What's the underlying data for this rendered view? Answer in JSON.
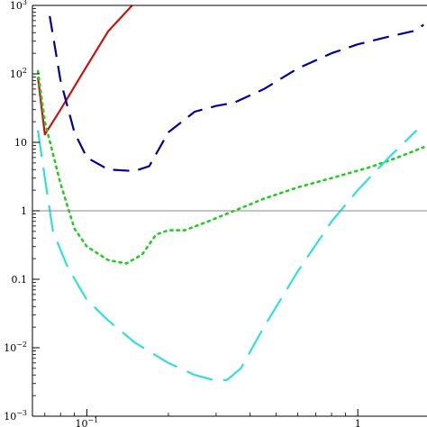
{
  "chart_data": {
    "type": "line",
    "x_scale": "log",
    "y_scale": "log",
    "xlim": [
      0.063,
      1.8
    ],
    "ylim": [
      0.001,
      1000
    ],
    "grid": false,
    "reference_line": {
      "y": 1,
      "color": "#888888"
    },
    "x_ticks": [
      {
        "value": 0.1,
        "base": "10",
        "exp": "−1"
      },
      {
        "value": 1,
        "base": "1",
        "exp": ""
      }
    ],
    "y_ticks": [
      {
        "value": 1000,
        "base": "10",
        "exp": "3"
      },
      {
        "value": 100,
        "base": "10",
        "exp": "2"
      },
      {
        "value": 10,
        "base": "10",
        "exp": ""
      },
      {
        "value": 1,
        "base": "1",
        "exp": ""
      },
      {
        "value": 0.1,
        "base": "0.1",
        "exp": ""
      },
      {
        "value": 0.01,
        "base": "10",
        "exp": "−2"
      },
      {
        "value": 0.001,
        "base": "10",
        "exp": "−3"
      }
    ],
    "series": [
      {
        "color": "#cc1111",
        "style": "solid",
        "points": [
          [
            0.066,
            90
          ],
          [
            0.07,
            13
          ],
          [
            0.08,
            30
          ],
          [
            0.1,
            130
          ],
          [
            0.12,
            420
          ],
          [
            0.147,
            1000
          ]
        ]
      },
      {
        "color": "#000099",
        "style": "dashed",
        "points": [
          [
            0.073,
            700
          ],
          [
            0.08,
            80
          ],
          [
            0.09,
            14
          ],
          [
            0.1,
            6
          ],
          [
            0.12,
            4
          ],
          [
            0.15,
            3.8
          ],
          [
            0.17,
            4.5
          ],
          [
            0.2,
            14
          ],
          [
            0.25,
            28
          ],
          [
            0.3,
            34
          ],
          [
            0.35,
            38
          ],
          [
            0.45,
            60
          ],
          [
            0.6,
            120
          ],
          [
            0.8,
            200
          ],
          [
            1.0,
            270
          ],
          [
            1.3,
            350
          ],
          [
            1.6,
            420
          ],
          [
            1.75,
            520
          ]
        ]
      },
      {
        "color": "#22cc22",
        "style": "dotted",
        "points": [
          [
            0.066,
            110
          ],
          [
            0.07,
            20
          ],
          [
            0.08,
            2.5
          ],
          [
            0.09,
            0.55
          ],
          [
            0.1,
            0.3
          ],
          [
            0.12,
            0.19
          ],
          [
            0.14,
            0.17
          ],
          [
            0.16,
            0.23
          ],
          [
            0.18,
            0.45
          ],
          [
            0.2,
            0.52
          ],
          [
            0.23,
            0.52
          ],
          [
            0.28,
            0.7
          ],
          [
            0.35,
            1.0
          ],
          [
            0.45,
            1.5
          ],
          [
            0.6,
            2.2
          ],
          [
            0.8,
            3.0
          ],
          [
            1.1,
            4.3
          ],
          [
            1.4,
            6
          ],
          [
            1.75,
            8.5
          ]
        ]
      },
      {
        "color": "#33dddd",
        "style": "longdash",
        "points": [
          [
            0.066,
            15
          ],
          [
            0.07,
            3
          ],
          [
            0.075,
            0.5
          ],
          [
            0.085,
            0.15
          ],
          [
            0.1,
            0.05
          ],
          [
            0.12,
            0.025
          ],
          [
            0.15,
            0.012
          ],
          [
            0.2,
            0.006
          ],
          [
            0.25,
            0.004
          ],
          [
            0.3,
            0.0033
          ],
          [
            0.33,
            0.0034
          ],
          [
            0.37,
            0.005
          ],
          [
            0.45,
            0.02
          ],
          [
            0.6,
            0.13
          ],
          [
            0.8,
            0.7
          ],
          [
            1.0,
            2.0
          ],
          [
            1.3,
            6
          ],
          [
            1.65,
            15
          ]
        ]
      }
    ]
  }
}
